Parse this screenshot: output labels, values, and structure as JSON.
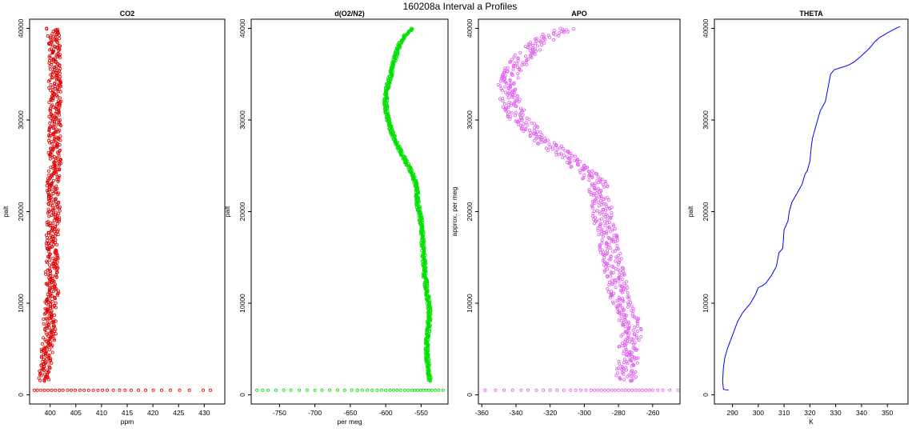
{
  "page_title": "160208a   Interval a Profiles",
  "chart_data": [
    {
      "type": "scatter",
      "title": "CO2",
      "xlabel": "ppm",
      "ylabel": "palt",
      "xlim": [
        396,
        434
      ],
      "ylim": [
        -1000,
        41000
      ],
      "xticks": [
        400,
        405,
        410,
        415,
        420,
        425,
        430
      ],
      "yticks": [
        0,
        10000,
        20000,
        30000,
        40000
      ],
      "color": "#e00000",
      "series": [
        {
          "profile": [
            [
              398.5,
              1500
            ],
            [
              399.0,
              3000
            ],
            [
              399.5,
              5000
            ],
            [
              400.0,
              7000
            ],
            [
              399.8,
              9000
            ],
            [
              400.5,
              11000
            ],
            [
              400.2,
              13000
            ],
            [
              400.5,
              15000
            ],
            [
              400.3,
              17000
            ],
            [
              400.6,
              19000
            ],
            [
              400.8,
              21000
            ],
            [
              400.5,
              23000
            ],
            [
              401.0,
              25000
            ],
            [
              400.8,
              27000
            ],
            [
              401.0,
              29000
            ],
            [
              400.9,
              31000
            ],
            [
              401.0,
              33000
            ],
            [
              400.8,
              35000
            ],
            [
              400.9,
              37000
            ],
            [
              400.7,
              39000
            ],
            [
              400.5,
              40000
            ]
          ],
          "spread": 1.2,
          "baseline_y": 500,
          "baseline_x": [
            396.9,
            397.5,
            398.2,
            398.9,
            399.6,
            400.3,
            401.0,
            401.8,
            402.5,
            403.4,
            404.1,
            404.9,
            405.8,
            406.6,
            407.5,
            408.4,
            409.3,
            410.2,
            411.1,
            412.3,
            413.5,
            414.6,
            415.8,
            417.2,
            418.6,
            420.1,
            421.7,
            423.4,
            425.2,
            427.1,
            429.8,
            431.2
          ]
        }
      ]
    },
    {
      "type": "scatter",
      "title": "d(O2/N2)",
      "xlabel": "per meg",
      "ylabel": "palt",
      "xlim": [
        -790,
        -512
      ],
      "ylim": [
        -1000,
        41000
      ],
      "xticks": [
        -750,
        -700,
        -650,
        -600,
        -550
      ],
      "yticks": [
        0,
        10000,
        20000,
        30000,
        40000
      ],
      "color": "#00e000",
      "series": [
        {
          "profile": [
            [
              -537,
              1500
            ],
            [
              -540,
              3000
            ],
            [
              -542,
              5000
            ],
            [
              -540,
              7000
            ],
            [
              -538,
              9000
            ],
            [
              -541,
              11000
            ],
            [
              -545,
              13000
            ],
            [
              -546,
              15000
            ],
            [
              -548,
              17000
            ],
            [
              -550,
              19000
            ],
            [
              -555,
              21000
            ],
            [
              -557,
              23000
            ],
            [
              -565,
              24500
            ],
            [
              -575,
              26000
            ],
            [
              -585,
              27500
            ],
            [
              -593,
              29000
            ],
            [
              -598,
              30500
            ],
            [
              -600,
              32000
            ],
            [
              -598,
              33500
            ],
            [
              -593,
              35000
            ],
            [
              -588,
              36500
            ],
            [
              -582,
              38000
            ],
            [
              -575,
              39000
            ],
            [
              -563,
              40000
            ]
          ],
          "spread": 2.5,
          "baseline_y": 500,
          "baseline_x": [
            -782,
            -774,
            -766,
            -755,
            -744,
            -734,
            -722,
            -711,
            -700,
            -690,
            -679,
            -668,
            -658,
            -648,
            -640,
            -633,
            -626,
            -619,
            -612,
            -606,
            -600,
            -594,
            -589,
            -584,
            -579,
            -573,
            -568,
            -563,
            -559,
            -555,
            -551,
            -547,
            -543,
            -539,
            -535,
            -530,
            -525,
            -519
          ]
        }
      ]
    },
    {
      "type": "scatter",
      "title": "APO",
      "xlabel": "",
      "ylabel": "approx. per meg",
      "xlim": [
        -362,
        -244
      ],
      "ylim": [
        -1000,
        41000
      ],
      "xticks": [
        -360,
        -340,
        -320,
        -300,
        -280,
        -260
      ],
      "yticks": [
        0,
        10000,
        20000,
        30000,
        40000
      ],
      "color": "#e060f0",
      "series": [
        {
          "profile": [
            [
              -276,
              1500
            ],
            [
              -275,
              3000
            ],
            [
              -274,
              5000
            ],
            [
              -272,
              7000
            ],
            [
              -275,
              9000
            ],
            [
              -280,
              11000
            ],
            [
              -282,
              13000
            ],
            [
              -284,
              15000
            ],
            [
              -286,
              17000
            ],
            [
              -289,
              19000
            ],
            [
              -290,
              21000
            ],
            [
              -292,
              23000
            ],
            [
              -300,
              24500
            ],
            [
              -310,
              26000
            ],
            [
              -322,
              27500
            ],
            [
              -332,
              29000
            ],
            [
              -340,
              30500
            ],
            [
              -343,
              32000
            ],
            [
              -345,
              33500
            ],
            [
              -343,
              35000
            ],
            [
              -338,
              36500
            ],
            [
              -330,
              38000
            ],
            [
              -320,
              39200
            ],
            [
              -310,
              40000
            ]
          ],
          "spread": 6,
          "baseline_y": 500,
          "baseline_x": [
            -358,
            -352,
            -347,
            -342,
            -337,
            -333,
            -328,
            -324,
            -320,
            -316,
            -312,
            -308,
            -305,
            -302,
            -299,
            -296,
            -294,
            -292,
            -290,
            -288,
            -286,
            -284,
            -282,
            -280,
            -278,
            -276,
            -274,
            -272,
            -270,
            -268,
            -266,
            -264,
            -262,
            -260,
            -257,
            -254,
            -250,
            -245
          ]
        }
      ]
    },
    {
      "type": "line",
      "title": "THETA",
      "xlabel": "K",
      "ylabel": "palt",
      "xlim": [
        283,
        358
      ],
      "ylim": [
        -1000,
        41000
      ],
      "xticks": [
        290,
        300,
        310,
        320,
        330,
        340,
        350
      ],
      "yticks": [
        0,
        10000,
        20000,
        30000,
        40000
      ],
      "color": "#0000ff",
      "series": [
        {
          "line": [
            [
              288.5,
              500
            ],
            [
              286.5,
              600
            ],
            [
              286.2,
              1500
            ],
            [
              286.5,
              3000
            ],
            [
              287.0,
              4000
            ],
            [
              288.0,
              5000
            ],
            [
              290.0,
              6500
            ],
            [
              292.0,
              8000
            ],
            [
              294.0,
              9000
            ],
            [
              297.0,
              10000
            ],
            [
              299.0,
              11000
            ],
            [
              300.0,
              11700
            ],
            [
              301.5,
              11900
            ],
            [
              303.0,
              12200
            ],
            [
              305.0,
              13000
            ],
            [
              307.0,
              14000
            ],
            [
              308.0,
              15500
            ],
            [
              309.5,
              16000
            ],
            [
              310.0,
              18000
            ],
            [
              311.5,
              19000
            ],
            [
              312.0,
              20000
            ],
            [
              313.0,
              21000
            ],
            [
              315.0,
              22000
            ],
            [
              317.0,
              23000
            ],
            [
              318.0,
              24000
            ],
            [
              319.0,
              24500
            ],
            [
              320.0,
              25500
            ],
            [
              320.5,
              27000
            ],
            [
              321.0,
              28000
            ],
            [
              322.0,
              29000
            ],
            [
              324.0,
              31000
            ],
            [
              326.0,
              32000
            ],
            [
              327.0,
              33500
            ],
            [
              328.0,
              35000
            ],
            [
              329.5,
              35500
            ],
            [
              333.0,
              35800
            ],
            [
              335.0,
              36000
            ],
            [
              337.0,
              36300
            ],
            [
              340.0,
              37000
            ],
            [
              343.0,
              37800
            ],
            [
              345.0,
              38500
            ],
            [
              347.0,
              39000
            ],
            [
              350.0,
              39500
            ],
            [
              352.0,
              39800
            ],
            [
              354.0,
              40100
            ],
            [
              355.0,
              40200
            ]
          ]
        }
      ]
    }
  ]
}
